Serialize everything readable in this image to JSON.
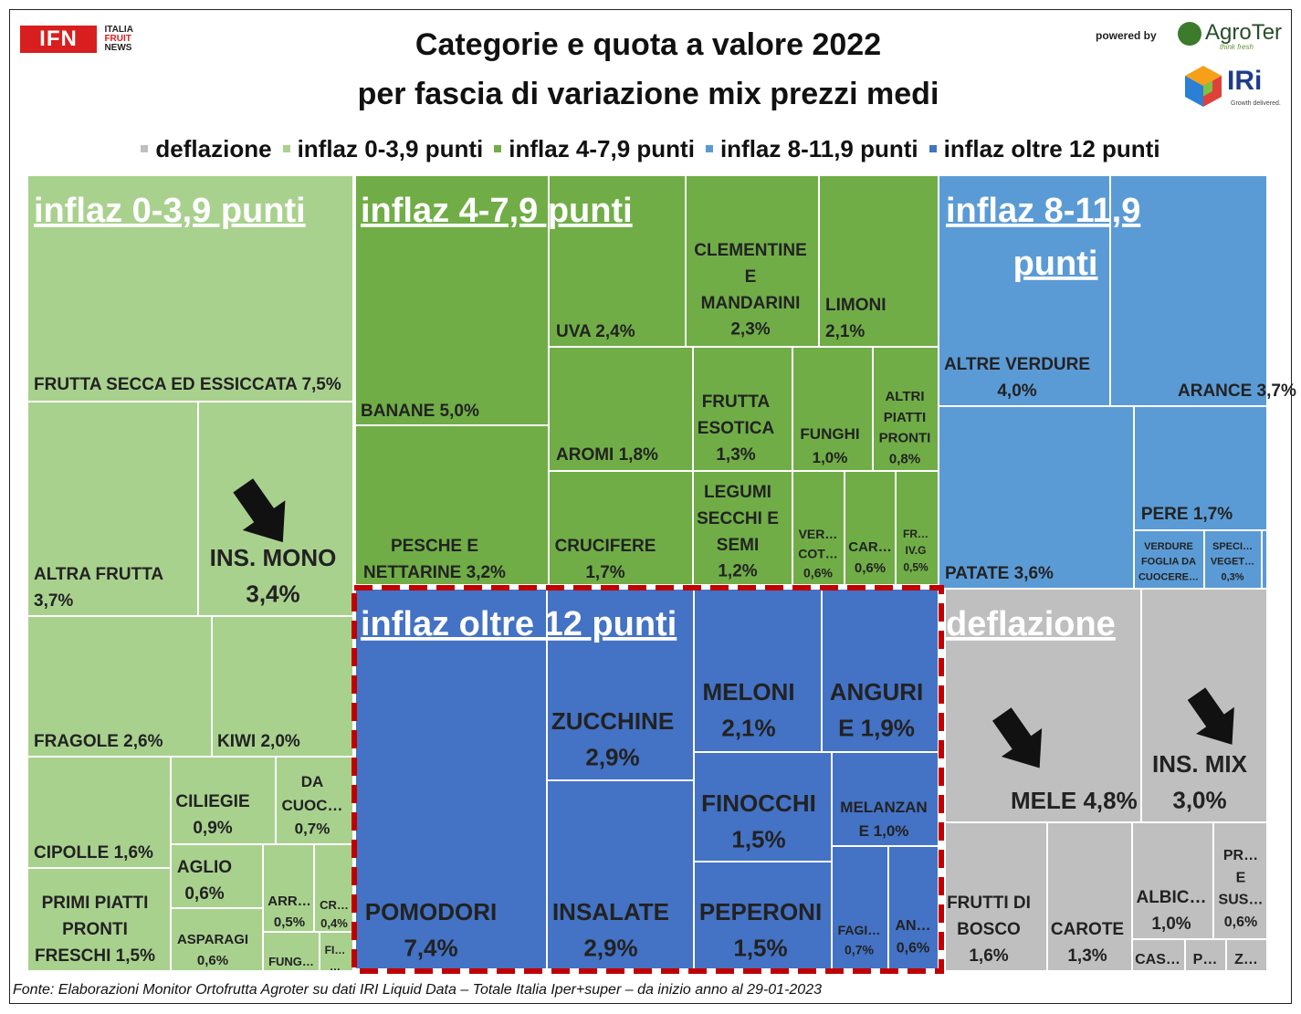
{
  "title_line1": "Categorie e quota a valore 2022",
  "title_line2": "per fascia di variazione mix prezzi medi",
  "logos": {
    "ifn": "IFN",
    "ifn_sub": [
      "ITALIA",
      "FRUIT",
      "NEWS"
    ],
    "powered_by": "powered by",
    "agroter": "AgroTer",
    "agroter_tag": "think fresh",
    "iri": "IRi",
    "iri_tag": "Growth delivered."
  },
  "legend": [
    {
      "label": "deflazione",
      "color": "#bfbfbf"
    },
    {
      "label": "inflaz 0-3,9 punti",
      "color": "#a9d18e"
    },
    {
      "label": "inflaz 4-7,9 punti",
      "color": "#70ad47"
    },
    {
      "label": "inflaz 8-11,9 punti",
      "color": "#5b9bd5"
    },
    {
      "label": "inflaz oltre 12 punti",
      "color": "#4472c4"
    }
  ],
  "footnote": "Fonte: Elaborazioni Monitor Ortofrutta Agroter su dati IRI Liquid Data – Totale Italia Iper+super –  da inizio anno al 29-01-2023",
  "chart_data": {
    "type": "treemap",
    "unit": "%",
    "groups": [
      {
        "name": "inflaz 0-3,9 punti",
        "label_lines": [
          "inflaz 0-3,9 punti"
        ],
        "color": "#a9d18e",
        "items": [
          {
            "name": "FRUTTA SECCA ED ESSICCATA",
            "value": 7.5,
            "lines": [
              "FRUTTA SECCA ED ESSICCATA 7,5%"
            ]
          },
          {
            "name": "ALTRA FRUTTA",
            "value": 3.7,
            "lines": [
              "ALTRA FRUTTA",
              "3,7%"
            ]
          },
          {
            "name": "INS. MONO",
            "value": 3.4,
            "lines": [
              "INS. MONO",
              "3,4%"
            ],
            "arrow": "down"
          },
          {
            "name": "FRAGOLE",
            "value": 2.6,
            "lines": [
              "FRAGOLE 2,6%"
            ]
          },
          {
            "name": "KIWI",
            "value": 2.0,
            "lines": [
              "KIWI 2,0%"
            ]
          },
          {
            "name": "CIPOLLE",
            "value": 1.6,
            "lines": [
              "CIPOLLE 1,6%"
            ]
          },
          {
            "name": "PRIMI PIATTI PRONTI FRESCHI",
            "value": 1.5,
            "lines": [
              "PRIMI PIATTI",
              "PRONTI",
              "FRESCHI 1,5%"
            ]
          },
          {
            "name": "CILIEGIE",
            "value": 0.9,
            "lines": [
              "CILIEGIE",
              "0,9%"
            ]
          },
          {
            "name": "DA CUOC...",
            "value": 0.7,
            "lines": [
              "DA",
              "CUOC…",
              "0,7%"
            ]
          },
          {
            "name": "AGLIO",
            "value": 0.6,
            "lines": [
              "AGLIO",
              "0,6%"
            ]
          },
          {
            "name": "ASPARAGI",
            "value": 0.6,
            "lines": [
              "ASPARAGI",
              "0,6%"
            ]
          },
          {
            "name": "ARR...",
            "value": 0.5,
            "lines": [
              "ARR…",
              "0,5%"
            ]
          },
          {
            "name": "CR...",
            "value": 0.4,
            "lines": [
              "CR…",
              "0,4%"
            ]
          },
          {
            "name": "FUNG...",
            "value": null,
            "lines": [
              "FUNG…"
            ]
          },
          {
            "name": "FI...",
            "value": null,
            "lines": [
              "FI…",
              "…"
            ]
          }
        ]
      },
      {
        "name": "inflaz 4-7,9 punti",
        "label_lines": [
          "inflaz 4-7,9 punti"
        ],
        "color": "#70ad47",
        "items": [
          {
            "name": "BANANE",
            "value": 5.0,
            "lines": [
              "BANANE 5,0%"
            ]
          },
          {
            "name": "PESCHE E NETTARINE",
            "value": 3.2,
            "lines": [
              "PESCHE E",
              "NETTARINE 3,2%"
            ]
          },
          {
            "name": "UVA",
            "value": 2.4,
            "lines": [
              "UVA 2,4%"
            ]
          },
          {
            "name": "CLEMENTINE E MANDARINI",
            "value": 2.3,
            "lines": [
              "CLEMENTINE",
              "E",
              "MANDARINI",
              "2,3%"
            ]
          },
          {
            "name": "LIMONI",
            "value": 2.1,
            "lines": [
              "LIMONI",
              "2,1%"
            ]
          },
          {
            "name": "AROMI",
            "value": 1.8,
            "lines": [
              "AROMI 1,8%"
            ]
          },
          {
            "name": "FRUTTA ESOTICA",
            "value": 1.3,
            "lines": [
              "FRUTTA",
              "ESOTICA",
              "1,3%"
            ]
          },
          {
            "name": "FUNGHI",
            "value": 1.0,
            "lines": [
              "FUNGHI",
              "1,0%"
            ]
          },
          {
            "name": "ALTRI PIATTI PRONTI",
            "value": 0.8,
            "lines": [
              "ALTRI",
              "PIATTI",
              "PRONTI",
              "0,8%"
            ]
          },
          {
            "name": "CRUCIFERE",
            "value": 1.7,
            "lines": [
              "CRUCIFERE",
              "1,7%"
            ]
          },
          {
            "name": "LEGUMI SECCHI E SEMI",
            "value": 1.2,
            "lines": [
              "LEGUMI",
              "SECCHI E",
              "SEMI",
              "1,2%"
            ]
          },
          {
            "name": "VER... COT...",
            "value": 0.6,
            "lines": [
              "VER…",
              "COT…",
              "0,6%"
            ]
          },
          {
            "name": "CAR...",
            "value": 0.6,
            "lines": [
              "CAR…",
              "0,6%"
            ]
          },
          {
            "name": "FR... IV.G",
            "value": 0.5,
            "lines": [
              "FR…",
              "IV.G",
              "0,5%"
            ]
          }
        ]
      },
      {
        "name": "inflaz 8-11,9 punti",
        "label_lines": [
          "inflaz 8-11,9",
          "punti"
        ],
        "color": "#5b9bd5",
        "items": [
          {
            "name": "ALTRE VERDURE",
            "value": 4.0,
            "lines": [
              "ALTRE VERDURE",
              "4,0%"
            ]
          },
          {
            "name": "ARANCE",
            "value": 3.7,
            "lines": [
              "ARANCE 3,7%"
            ]
          },
          {
            "name": "PATATE",
            "value": 3.6,
            "lines": [
              "PATATE 3,6%"
            ]
          },
          {
            "name": "PERE",
            "value": 1.7,
            "lines": [
              "PERE 1,7%"
            ]
          },
          {
            "name": "VERDURE FOGLIA DA CUOCERE",
            "value": null,
            "lines": [
              "VERDURE",
              "FOGLIA DA",
              "CUOCERE…"
            ]
          },
          {
            "name": "SPECI... VEGET...",
            "value": 0.3,
            "lines": [
              "SPECI…",
              "VEGET…",
              "0,3%"
            ]
          }
        ]
      },
      {
        "name": "inflaz oltre 12 punti",
        "label_lines": [
          "inflaz oltre 12 punti"
        ],
        "color": "#4472c4",
        "items": [
          {
            "name": "POMODORI",
            "value": 7.4,
            "lines": [
              "POMODORI",
              "7,4%"
            ]
          },
          {
            "name": "ZUCCHINE",
            "value": 2.9,
            "lines": [
              "ZUCCHINE",
              "2,9%"
            ]
          },
          {
            "name": "INSALATE",
            "value": 2.9,
            "lines": [
              "INSALATE",
              "2,9%"
            ]
          },
          {
            "name": "MELONI",
            "value": 2.1,
            "lines": [
              "MELONI",
              "2,1%"
            ]
          },
          {
            "name": "ANGURIE",
            "value": 1.9,
            "lines": [
              "ANGURI",
              "E 1,9%"
            ]
          },
          {
            "name": "FINOCCHI",
            "value": 1.5,
            "lines": [
              "FINOCCHI",
              "1,5%"
            ]
          },
          {
            "name": "MELANZANE",
            "value": 1.0,
            "lines": [
              "MELANZAN",
              "E 1,0%"
            ]
          },
          {
            "name": "PEPERONI",
            "value": 1.5,
            "lines": [
              "PEPERONI",
              "1,5%"
            ]
          },
          {
            "name": "FAGI...",
            "value": 0.7,
            "lines": [
              "FAGI…",
              "0,7%"
            ]
          },
          {
            "name": "AN...",
            "value": 0.6,
            "lines": [
              "AN…",
              "0,6%"
            ]
          }
        ]
      },
      {
        "name": "deflazione",
        "label_lines": [
          "deflazione"
        ],
        "color": "#bfbfbf",
        "items": [
          {
            "name": "MELE",
            "value": 4.8,
            "lines": [
              "MELE 4,8%"
            ],
            "arrow": "down"
          },
          {
            "name": "INS. MIX",
            "value": 3.0,
            "lines": [
              "INS. MIX",
              "3,0%"
            ],
            "arrow": "down"
          },
          {
            "name": "FRUTTI DI BOSCO",
            "value": 1.6,
            "lines": [
              "FRUTTI DI",
              "BOSCO",
              "1,6%"
            ]
          },
          {
            "name": "CAROTE",
            "value": 1.3,
            "lines": [
              "CAROTE",
              "1,3%"
            ]
          },
          {
            "name": "ALBIC...",
            "value": 1.0,
            "lines": [
              "ALBIC…",
              "1,0%"
            ]
          },
          {
            "name": "PR... E SUS...",
            "value": 0.6,
            "lines": [
              "PR…",
              "E",
              "SUS…",
              "0,6%"
            ]
          },
          {
            "name": "CAS...",
            "value": null,
            "lines": [
              "CAS…"
            ]
          },
          {
            "name": "P...",
            "value": null,
            "lines": [
              "P…"
            ]
          },
          {
            "name": "Z...",
            "value": null,
            "lines": [
              "Z…"
            ]
          }
        ]
      }
    ]
  }
}
